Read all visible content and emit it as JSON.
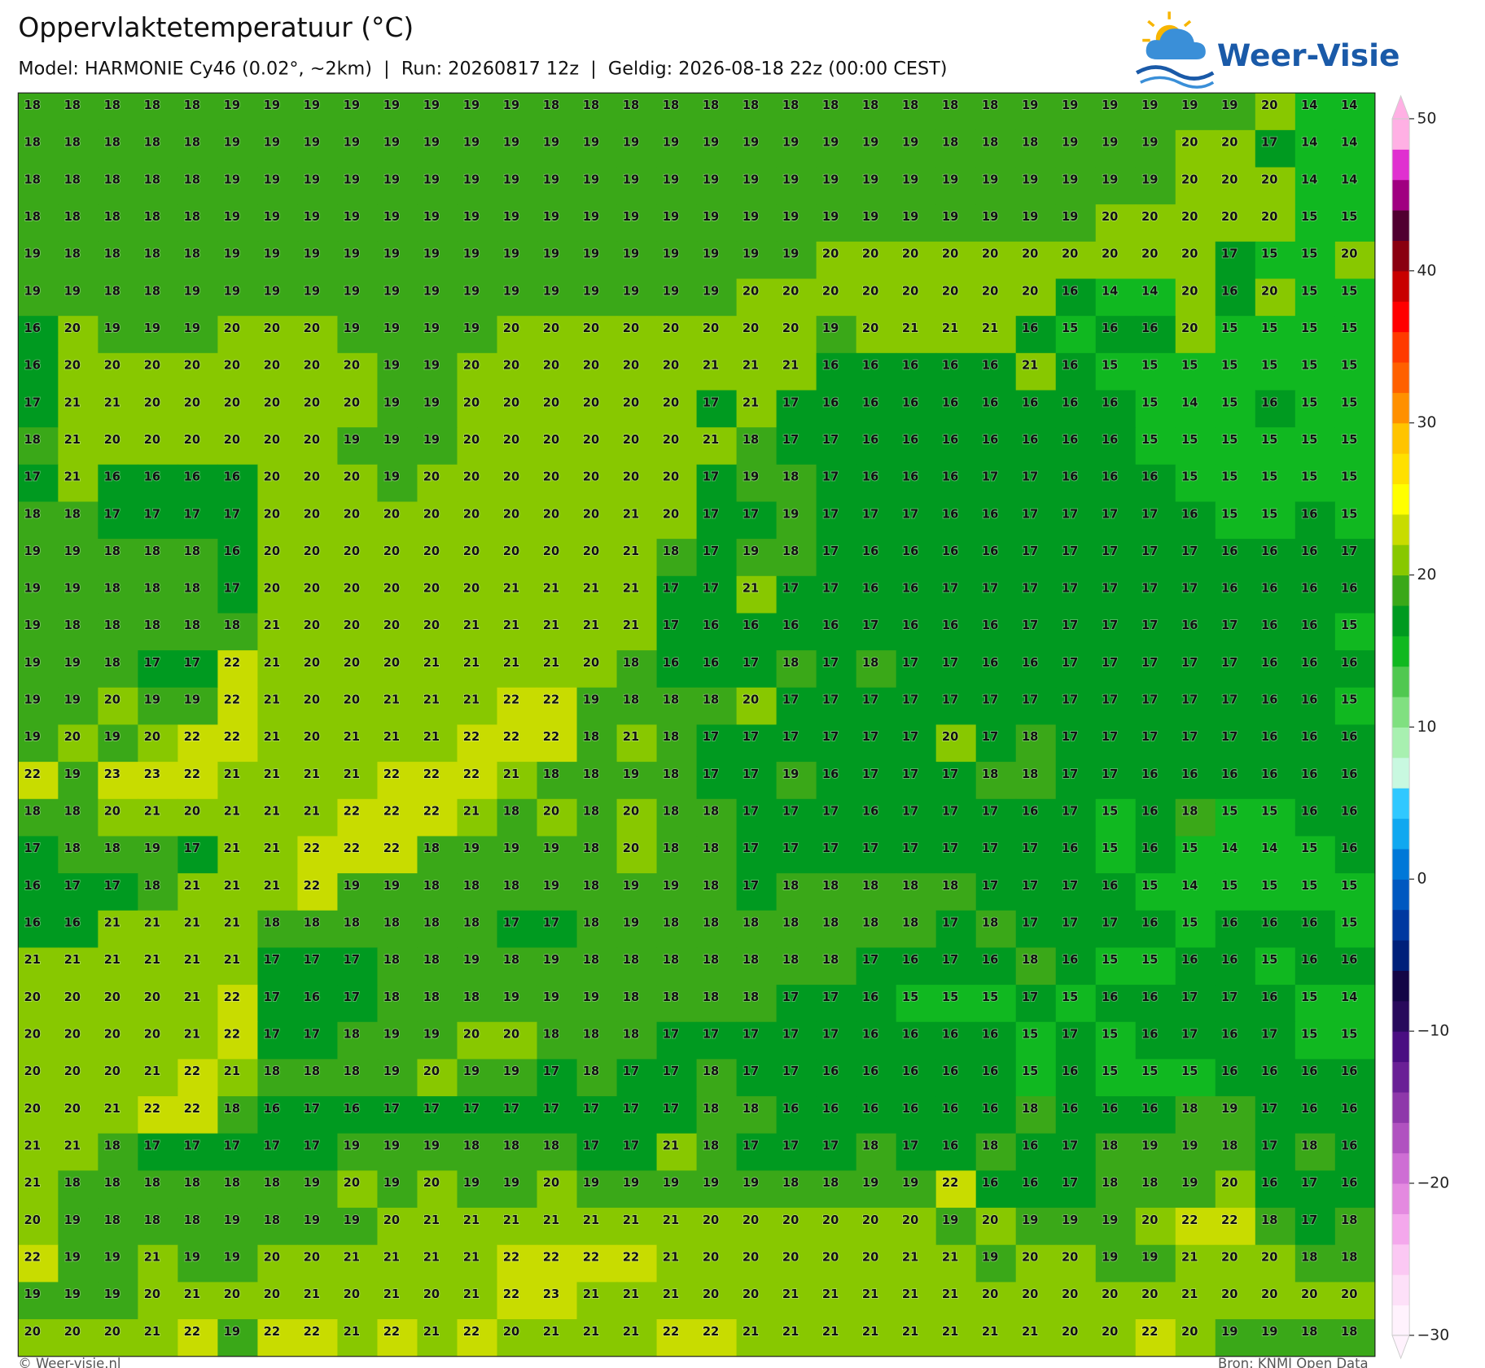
{
  "map": {
    "title": "Oppervlaktetemperatuur (°C)",
    "subtitle": "Model: HARMONIE Cy46 (0.02°, ~2km)  |  Run: 20260817 12z  |  Geldig: 2026-08-18 22z (00:00 CEST)",
    "logo": "Weer-Visie",
    "footer_left": "© Weer-visie.nl",
    "footer_right": "Bron: KNMI Open Data",
    "grid": [
      [
        18,
        18,
        18,
        18,
        18,
        19,
        19,
        19,
        19,
        19,
        19,
        19,
        19,
        18,
        18,
        18,
        18,
        18,
        18,
        18,
        18,
        18,
        18,
        18,
        18,
        19,
        19,
        19,
        19,
        19,
        19,
        20,
        14,
        14
      ],
      [
        18,
        18,
        18,
        18,
        18,
        19,
        19,
        19,
        19,
        19,
        19,
        19,
        19,
        19,
        19,
        19,
        19,
        19,
        19,
        19,
        19,
        19,
        19,
        18,
        18,
        18,
        19,
        19,
        19,
        20,
        20,
        17,
        14,
        14
      ],
      [
        18,
        18,
        18,
        18,
        18,
        19,
        19,
        19,
        19,
        19,
        19,
        19,
        19,
        19,
        19,
        19,
        19,
        19,
        19,
        19,
        19,
        19,
        19,
        19,
        19,
        19,
        19,
        19,
        19,
        20,
        20,
        20,
        14,
        14
      ],
      [
        18,
        18,
        18,
        18,
        18,
        19,
        19,
        19,
        19,
        19,
        19,
        19,
        19,
        19,
        19,
        19,
        19,
        19,
        19,
        19,
        19,
        19,
        19,
        19,
        19,
        19,
        19,
        20,
        20,
        20,
        20,
        20,
        15,
        15
      ],
      [
        19,
        18,
        18,
        18,
        18,
        19,
        19,
        19,
        19,
        19,
        19,
        19,
        19,
        19,
        19,
        19,
        19,
        19,
        19,
        19,
        20,
        20,
        20,
        20,
        20,
        20,
        20,
        20,
        20,
        20,
        17,
        15,
        15,
        20
      ],
      [
        19,
        19,
        18,
        18,
        19,
        19,
        19,
        19,
        19,
        19,
        19,
        19,
        19,
        19,
        19,
        19,
        19,
        19,
        20,
        20,
        20,
        20,
        20,
        20,
        20,
        20,
        16,
        14,
        14,
        20,
        16,
        20,
        15,
        15
      ],
      [
        16,
        20,
        19,
        19,
        19,
        20,
        20,
        20,
        19,
        19,
        19,
        19,
        20,
        20,
        20,
        20,
        20,
        20,
        20,
        20,
        19,
        20,
        21,
        21,
        21,
        16,
        15,
        16,
        16,
        20,
        15,
        15,
        15,
        15
      ],
      [
        16,
        20,
        20,
        20,
        20,
        20,
        20,
        20,
        20,
        19,
        19,
        20,
        20,
        20,
        20,
        20,
        20,
        21,
        21,
        21,
        16,
        16,
        16,
        16,
        16,
        21,
        16,
        15,
        15,
        15,
        15,
        15,
        15,
        15
      ],
      [
        17,
        21,
        21,
        20,
        20,
        20,
        20,
        20,
        20,
        19,
        19,
        20,
        20,
        20,
        20,
        20,
        20,
        17,
        21,
        17,
        16,
        16,
        16,
        16,
        16,
        16,
        16,
        16,
        15,
        14,
        15,
        16,
        15,
        15
      ],
      [
        18,
        21,
        20,
        20,
        20,
        20,
        20,
        20,
        19,
        19,
        19,
        20,
        20,
        20,
        20,
        20,
        20,
        21,
        18,
        17,
        17,
        16,
        16,
        16,
        16,
        16,
        16,
        16,
        15,
        15,
        15,
        15,
        15,
        15
      ],
      [
        17,
        21,
        16,
        16,
        16,
        16,
        20,
        20,
        20,
        19,
        20,
        20,
        20,
        20,
        20,
        20,
        20,
        17,
        19,
        18,
        17,
        16,
        16,
        16,
        17,
        17,
        16,
        16,
        16,
        15,
        15,
        15,
        15,
        15
      ],
      [
        18,
        18,
        17,
        17,
        17,
        17,
        20,
        20,
        20,
        20,
        20,
        20,
        20,
        20,
        20,
        21,
        20,
        17,
        17,
        19,
        17,
        17,
        17,
        16,
        16,
        17,
        17,
        17,
        17,
        16,
        15,
        15,
        16,
        15
      ],
      [
        19,
        19,
        18,
        18,
        18,
        16,
        20,
        20,
        20,
        20,
        20,
        20,
        20,
        20,
        20,
        21,
        18,
        17,
        19,
        18,
        17,
        16,
        16,
        16,
        16,
        17,
        17,
        17,
        17,
        17,
        16,
        16,
        16,
        17
      ],
      [
        19,
        19,
        18,
        18,
        18,
        17,
        20,
        20,
        20,
        20,
        20,
        20,
        21,
        21,
        21,
        21,
        17,
        17,
        21,
        17,
        17,
        16,
        16,
        17,
        17,
        17,
        17,
        17,
        17,
        17,
        16,
        16,
        16,
        16
      ],
      [
        19,
        18,
        18,
        18,
        18,
        18,
        21,
        20,
        20,
        20,
        20,
        21,
        21,
        21,
        21,
        21,
        17,
        16,
        16,
        16,
        16,
        17,
        16,
        16,
        16,
        17,
        17,
        17,
        17,
        16,
        17,
        16,
        16,
        15
      ],
      [
        19,
        19,
        18,
        17,
        17,
        22,
        21,
        20,
        20,
        20,
        21,
        21,
        21,
        21,
        20,
        18,
        16,
        16,
        17,
        18,
        17,
        18,
        17,
        17,
        16,
        16,
        17,
        17,
        17,
        17,
        17,
        16,
        16,
        16
      ],
      [
        19,
        19,
        20,
        19,
        19,
        22,
        21,
        20,
        20,
        21,
        21,
        21,
        22,
        22,
        19,
        18,
        18,
        18,
        20,
        17,
        17,
        17,
        17,
        17,
        17,
        17,
        17,
        17,
        17,
        17,
        17,
        16,
        16,
        15
      ],
      [
        19,
        20,
        19,
        20,
        22,
        22,
        21,
        20,
        21,
        21,
        21,
        22,
        22,
        22,
        18,
        21,
        18,
        17,
        17,
        17,
        17,
        17,
        17,
        20,
        17,
        18,
        17,
        17,
        17,
        17,
        17,
        16,
        16,
        16
      ],
      [
        22,
        19,
        23,
        23,
        22,
        21,
        21,
        21,
        21,
        22,
        22,
        22,
        21,
        18,
        18,
        19,
        18,
        17,
        17,
        19,
        16,
        17,
        17,
        17,
        18,
        18,
        17,
        17,
        16,
        16,
        16,
        16,
        16,
        16
      ],
      [
        18,
        18,
        20,
        21,
        20,
        21,
        21,
        21,
        22,
        22,
        22,
        21,
        18,
        20,
        18,
        20,
        18,
        18,
        17,
        17,
        17,
        16,
        17,
        17,
        17,
        16,
        17,
        15,
        16,
        18,
        15,
        15,
        16,
        16
      ],
      [
        17,
        18,
        18,
        19,
        17,
        21,
        21,
        22,
        22,
        22,
        18,
        19,
        19,
        19,
        18,
        20,
        18,
        18,
        17,
        17,
        17,
        17,
        17,
        17,
        17,
        17,
        16,
        15,
        16,
        15,
        14,
        14,
        15,
        16
      ],
      [
        16,
        17,
        17,
        18,
        21,
        21,
        21,
        22,
        19,
        19,
        18,
        18,
        18,
        19,
        18,
        19,
        19,
        18,
        17,
        18,
        18,
        18,
        18,
        18,
        17,
        17,
        17,
        16,
        15,
        14,
        15,
        15,
        15,
        15
      ],
      [
        16,
        16,
        21,
        21,
        21,
        21,
        18,
        18,
        18,
        18,
        18,
        18,
        17,
        17,
        18,
        19,
        18,
        18,
        18,
        18,
        18,
        18,
        18,
        17,
        18,
        17,
        17,
        17,
        16,
        15,
        16,
        16,
        16,
        15
      ],
      [
        21,
        21,
        21,
        21,
        21,
        21,
        17,
        17,
        17,
        18,
        18,
        19,
        18,
        19,
        18,
        18,
        18,
        18,
        18,
        18,
        18,
        17,
        16,
        17,
        16,
        18,
        16,
        15,
        15,
        16,
        16,
        15,
        16,
        16
      ],
      [
        20,
        20,
        20,
        20,
        21,
        22,
        17,
        16,
        17,
        18,
        18,
        18,
        19,
        19,
        19,
        18,
        18,
        18,
        18,
        17,
        17,
        16,
        15,
        15,
        15,
        17,
        15,
        16,
        16,
        17,
        17,
        16,
        15,
        14
      ],
      [
        20,
        20,
        20,
        20,
        21,
        22,
        17,
        17,
        18,
        19,
        19,
        20,
        20,
        18,
        18,
        18,
        17,
        17,
        17,
        17,
        17,
        16,
        16,
        16,
        16,
        15,
        17,
        15,
        16,
        17,
        16,
        17,
        15,
        15
      ],
      [
        20,
        20,
        20,
        21,
        22,
        21,
        18,
        18,
        18,
        19,
        20,
        19,
        19,
        17,
        18,
        17,
        17,
        18,
        17,
        17,
        16,
        16,
        16,
        16,
        16,
        15,
        16,
        15,
        15,
        15,
        16,
        16,
        16,
        16
      ],
      [
        20,
        20,
        21,
        22,
        22,
        18,
        16,
        17,
        16,
        17,
        17,
        17,
        17,
        17,
        17,
        17,
        17,
        18,
        18,
        16,
        16,
        16,
        16,
        16,
        16,
        18,
        16,
        16,
        16,
        18,
        19,
        17,
        16,
        16
      ],
      [
        21,
        21,
        18,
        17,
        17,
        17,
        17,
        17,
        19,
        19,
        19,
        18,
        18,
        18,
        17,
        17,
        21,
        18,
        17,
        17,
        17,
        18,
        17,
        16,
        18,
        16,
        17,
        18,
        19,
        19,
        18,
        17,
        18,
        16
      ],
      [
        21,
        18,
        18,
        18,
        18,
        18,
        18,
        19,
        20,
        19,
        20,
        19,
        19,
        20,
        19,
        19,
        19,
        19,
        19,
        18,
        18,
        19,
        19,
        22,
        16,
        16,
        17,
        18,
        18,
        19,
        20,
        16,
        17,
        16
      ],
      [
        20,
        19,
        18,
        18,
        18,
        19,
        18,
        19,
        19,
        20,
        21,
        21,
        21,
        21,
        21,
        21,
        21,
        20,
        20,
        20,
        20,
        20,
        20,
        19,
        20,
        19,
        19,
        19,
        20,
        22,
        22,
        18,
        17,
        18
      ],
      [
        22,
        19,
        19,
        21,
        19,
        19,
        20,
        20,
        21,
        21,
        21,
        21,
        22,
        22,
        22,
        22,
        21,
        20,
        20,
        20,
        20,
        20,
        21,
        21,
        19,
        20,
        20,
        19,
        19,
        21,
        20,
        20,
        18,
        18
      ],
      [
        19,
        19,
        19,
        20,
        21,
        20,
        20,
        21,
        20,
        21,
        20,
        21,
        22,
        23,
        21,
        21,
        21,
        20,
        20,
        21,
        21,
        21,
        21,
        21,
        20,
        20,
        20,
        20,
        20,
        21,
        20,
        20,
        20,
        20
      ],
      [
        20,
        20,
        20,
        21,
        22,
        19,
        22,
        22,
        21,
        22,
        21,
        22,
        20,
        21,
        21,
        21,
        22,
        22,
        21,
        21,
        21,
        21,
        21,
        21,
        21,
        21,
        20,
        20,
        22,
        20,
        19,
        19,
        18,
        18
      ]
    ],
    "colorbar": {
      "lim": [
        -30,
        50
      ],
      "ticks": [
        {
          "value": -30,
          "label": "−30"
        },
        {
          "value": -20,
          "label": "−20"
        },
        {
          "value": -10,
          "label": "−10"
        },
        0,
        10,
        20,
        30,
        40,
        50
      ],
      "colors": [
        "#fff2fd",
        "#fde0f8",
        "#fbc8f3",
        "#f4a8ec",
        "#e48ae0",
        "#ce6ed4",
        "#b052c0",
        "#8e38aa",
        "#6a2096",
        "#4a0e82",
        "#280a5c",
        "#140646",
        "#00207a",
        "#0038a0",
        "#0058c0",
        "#0078d8",
        "#10a8f0",
        "#30c8ff",
        "#c8f8e0",
        "#a8f0b0",
        "#80e080",
        "#50c850",
        "#10b820",
        "#009a20",
        "#3aa818",
        "#88c800",
        "#c8dc00",
        "#ffff00",
        "#ffe000",
        "#ffc400",
        "#ff9000",
        "#ff6000",
        "#ff3a00",
        "#ff0000",
        "#c80000",
        "#8a0010",
        "#500030",
        "#a00080",
        "#e030d0",
        "#ffb0e4"
      ]
    }
  }
}
